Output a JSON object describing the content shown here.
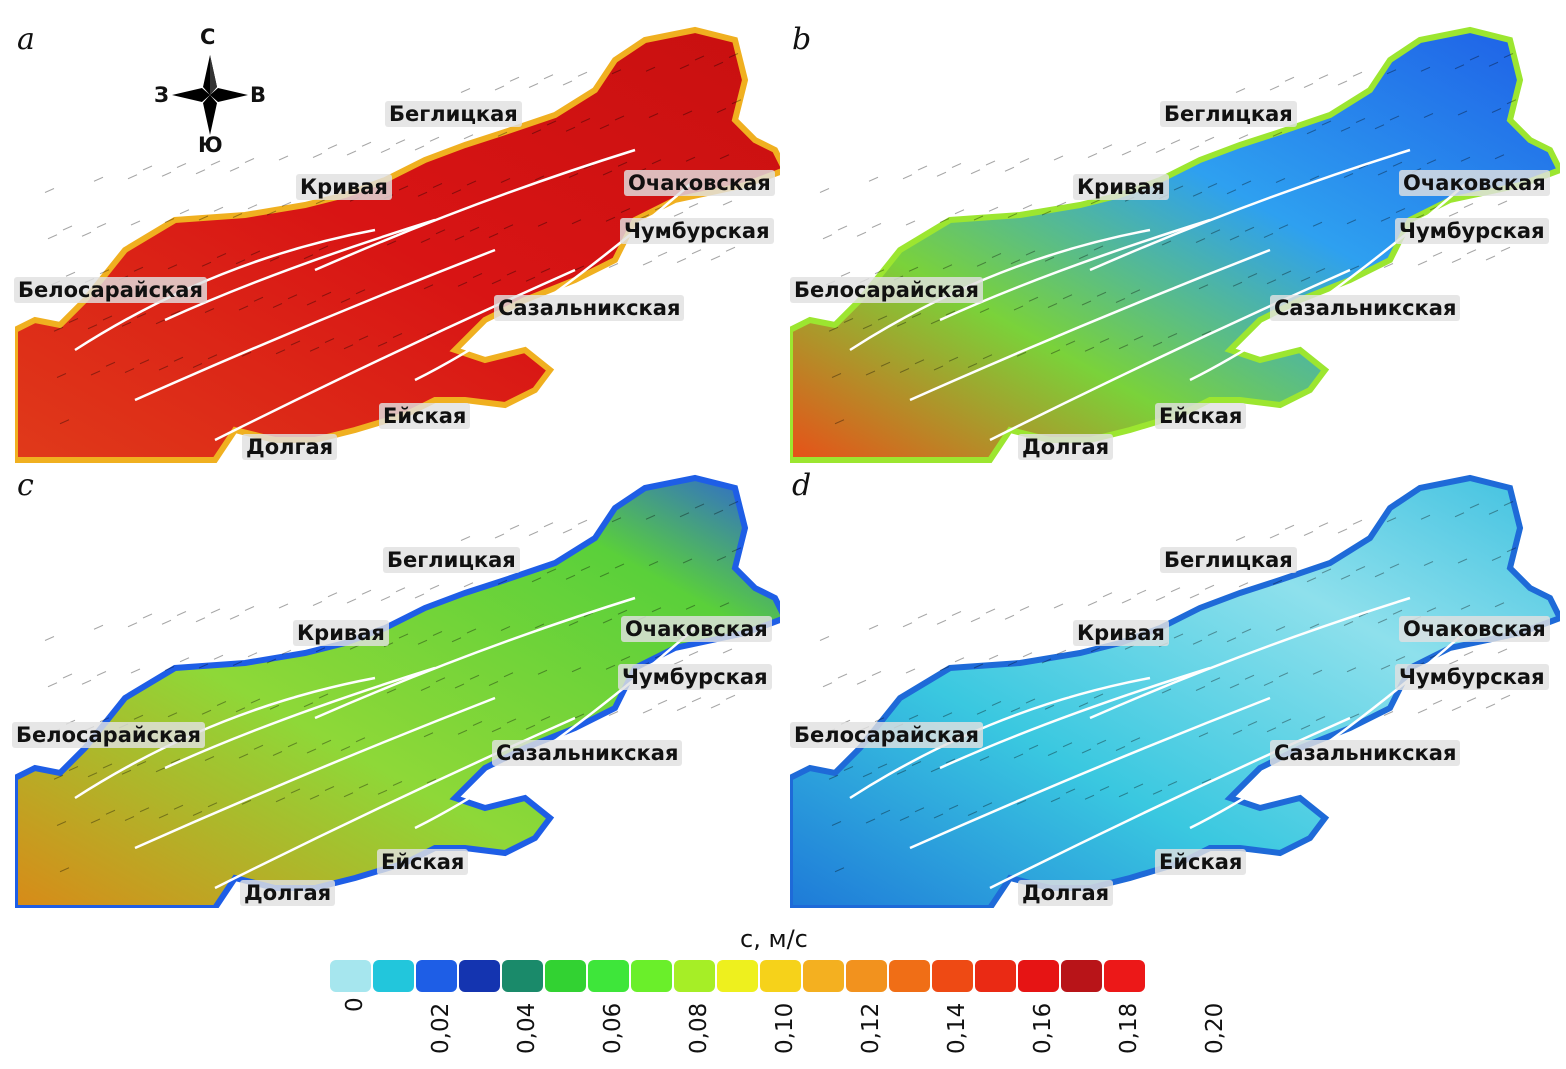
{
  "panels": [
    {
      "letter": "a",
      "scheme": "high"
    },
    {
      "letter": "b",
      "scheme": "mixed"
    },
    {
      "letter": "c",
      "scheme": "mid"
    },
    {
      "letter": "d",
      "scheme": "low"
    }
  ],
  "places": {
    "beglitskaya": "Беглицкая",
    "krivaya": "Кривая",
    "ochakovskaya": "Очаковская",
    "chumburskaya": "Чумбурская",
    "belosarayskaya": "Белосарайская",
    "sazalnikskaya": "Сазальникская",
    "eyskaya": "Ейская",
    "dolgaya": "Долгая"
  },
  "compass": {
    "n": "С",
    "s": "Ю",
    "w": "З",
    "e": "В"
  },
  "legend": {
    "symbol": "c",
    "unit": ", м/с",
    "colors": [
      "#a6e6ee",
      "#22c6dc",
      "#1e5ee6",
      "#1434b0",
      "#1a8a6a",
      "#32d232",
      "#3ee63a",
      "#6aef2a",
      "#a6ee26",
      "#eef01e",
      "#f6d21a",
      "#f4b020",
      "#f2921e",
      "#f06e16",
      "#ee4a14",
      "#ea2a14",
      "#e61414",
      "#b81418",
      "#ec1818"
    ],
    "ticks": [
      "0",
      "0,02",
      "0,04",
      "0,06",
      "0,08",
      "0,10",
      "0,12",
      "0,14",
      "0,16",
      "0,18",
      "0,20"
    ]
  }
}
